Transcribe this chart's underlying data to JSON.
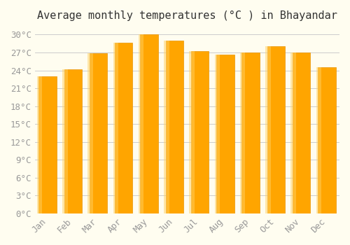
{
  "title": "Average monthly temperatures (°C ) in Bhayandar",
  "months": [
    "Jan",
    "Feb",
    "Mar",
    "Apr",
    "May",
    "Jun",
    "Jul",
    "Aug",
    "Sep",
    "Oct",
    "Nov",
    "Dec"
  ],
  "values": [
    23.0,
    24.2,
    26.9,
    28.6,
    30.0,
    29.0,
    27.2,
    26.7,
    27.0,
    28.1,
    27.0,
    24.5
  ],
  "bar_color": "#FFA500",
  "bar_edge_color": "#E8960A",
  "background_color": "#FFFDF0",
  "grid_color": "#CCCCCC",
  "ylim": [
    0,
    31
  ],
  "yticks": [
    0,
    3,
    6,
    9,
    12,
    15,
    18,
    21,
    24,
    27,
    30
  ],
  "ytick_labels": [
    "0°C",
    "3°C",
    "6°C",
    "9°C",
    "12°C",
    "15°C",
    "18°C",
    "21°C",
    "24°C",
    "27°C",
    "30°C"
  ],
  "title_fontsize": 11,
  "tick_fontsize": 9,
  "tick_color": "#999999",
  "font_family": "monospace"
}
